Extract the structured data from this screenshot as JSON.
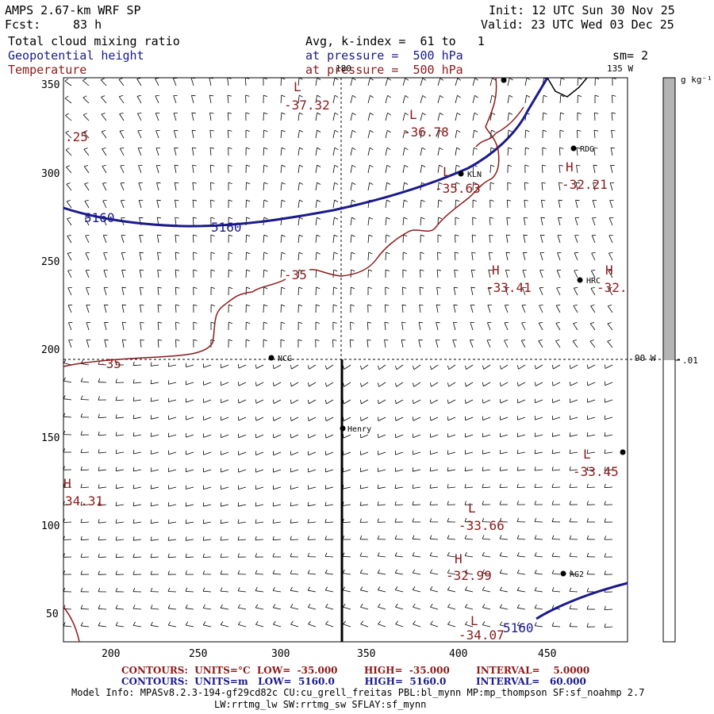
{
  "header": {
    "model": "AMPS 2.67-km WRF SP",
    "fcst_label": "Fcst:",
    "fcst_value": "83 h",
    "init": "Init: 12 UTC Sun 30 Nov 25",
    "valid": "Valid: 23 UTC Wed 03 Dec 25",
    "field1": "Total cloud mixing ratio",
    "field1_info": "Avg, k-index =  61 to   1",
    "field2": "Geopotential height",
    "field2_info": "at pressure =  500 hPa",
    "field3": "Temperature",
    "field3_info": "at pressure =  500 hPa",
    "sm": "sm= 2"
  },
  "axes": {
    "x_ticks": [
      "200",
      "250",
      "300",
      "350",
      "400",
      "450"
    ],
    "y_ticks": [
      "350",
      "300",
      "250",
      "200",
      "150",
      "100",
      "50"
    ],
    "lon_180": "180",
    "lon_135w": "135 W",
    "lon_90w": "90 W"
  },
  "colorbar": {
    "unit": "g kg⁻¹",
    "tick": ".01"
  },
  "stations": [
    "RDG",
    "KLN",
    "HRC",
    "NCG",
    "Henry",
    "AG2"
  ],
  "highs_lows": [
    {
      "symbol": "L",
      "value": "-37.32"
    },
    {
      "symbol": "L",
      "value": "-36.78"
    },
    {
      "symbol": "L",
      "value": "-35.63"
    },
    {
      "symbol": "H",
      "value": "-32.21"
    },
    {
      "symbol": "H",
      "value": "-33.41"
    },
    {
      "symbol": "H",
      "value": "-32."
    },
    {
      "symbol": "L",
      "value": "-33.45"
    },
    {
      "symbol": "L",
      "value": "-33.66"
    },
    {
      "symbol": "H",
      "value": "-32.99"
    },
    {
      "symbol": "L",
      "value": "-34.07"
    },
    {
      "symbol": "H",
      "value": "34.31"
    }
  ],
  "contour_labels": {
    "height_5160_a": "5160",
    "height_5160_b": "5160",
    "height_5160_c": "5160",
    "temp_35_a": "-35",
    "temp_35_b": "-35",
    "temp_edge": ".25"
  },
  "footer": {
    "line1": "CONTOURS:  UNITS=°C  LOW=  -35.000        HIGH=  -35.000        INTERVAL=    5.0000",
    "line2": "CONTOURS:  UNITS=m   LOW=  5160.0         HIGH=  5160.0         INTERVAL=   60.000",
    "model_info": "Model Info: MPASv8.2.3-194-gf29cd82c CU:cu_grell_freitas PBL:bl_mynn MP:mp_thompson SF:sf_noahmp 2.7",
    "model_info2": "LW:rrtmg_lw SW:rrtmg_sw SFLAY:sf_mynn"
  },
  "colors": {
    "temperature": "#8b1a1a",
    "geopotential": "#1a1a8c",
    "colorbar_fill": "#b4b4b4"
  }
}
